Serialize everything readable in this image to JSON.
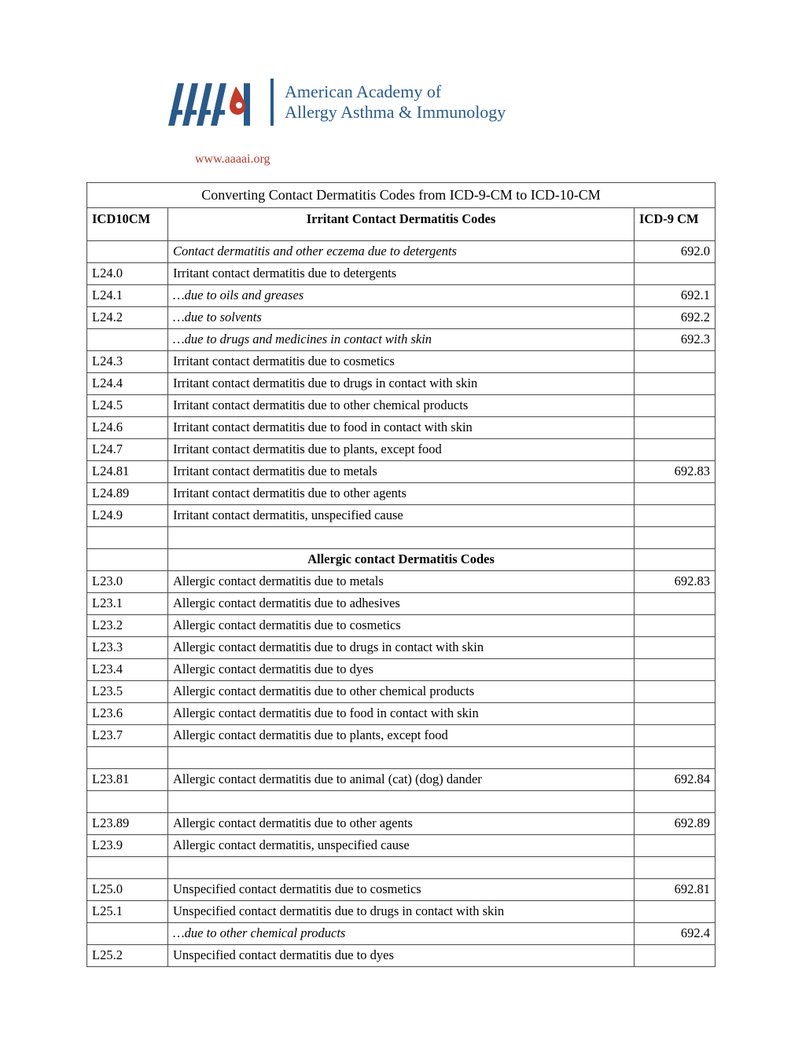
{
  "logo": {
    "line1": "American Academy of",
    "line2": "Allergy Asthma & Immunology",
    "url": "www.aaaai.org",
    "brand_color": "#2a5a8a",
    "accent_color": "#b43a2e"
  },
  "table": {
    "title": "Converting Contact Dermatitis Codes from ICD-9-CM to ICD-10-CM",
    "col_icd10": "ICD10CM",
    "col_desc_1": "Irritant Contact Dermatitis Codes",
    "col_icd9": "ICD-9 CM",
    "section2": "Allergic contact Dermatitis Codes",
    "rows": [
      {
        "icd10": "",
        "desc": "Contact dermatitis and other eczema due to detergents",
        "italic": true,
        "icd9": "692.0"
      },
      {
        "icd10": "L24.0",
        "desc": "Irritant contact dermatitis due to detergents",
        "icd9": ""
      },
      {
        "icd10": "L24.1",
        "desc": "…due to oils and greases",
        "italic": true,
        "icd9": "692.1"
      },
      {
        "icd10": "L24.2",
        "desc": "…due to solvents",
        "italic": true,
        "icd9": "692.2"
      },
      {
        "icd10": "",
        "desc": "…due to drugs and medicines in contact with skin",
        "italic": true,
        "icd9": "692.3"
      },
      {
        "icd10": "L24.3",
        "desc": "Irritant contact dermatitis due to cosmetics",
        "icd9": ""
      },
      {
        "icd10": "L24.4",
        "desc": "Irritant contact dermatitis due to drugs in contact with skin",
        "icd9": ""
      },
      {
        "icd10": "L24.5",
        "desc": "Irritant contact dermatitis due to other chemical products",
        "icd9": ""
      },
      {
        "icd10": "L24.6",
        "desc": "Irritant contact dermatitis due to food in contact with skin",
        "icd9": ""
      },
      {
        "icd10": "L24.7",
        "desc": "Irritant contact dermatitis due to plants, except food",
        "icd9": ""
      },
      {
        "icd10": "L24.81",
        "desc": "Irritant contact dermatitis due to metals",
        "icd9": "692.83"
      },
      {
        "icd10": "L24.89",
        "desc": "Irritant contact dermatitis due to other agents",
        "icd9": ""
      },
      {
        "icd10": "L24.9",
        "desc": "Irritant contact dermatitis, unspecified cause",
        "icd9": ""
      }
    ],
    "rows2": [
      {
        "icd10": "L23.0",
        "desc": "Allergic contact dermatitis due to metals",
        "icd9": "692.83"
      },
      {
        "icd10": "L23.1",
        "desc": "Allergic contact dermatitis due to adhesives",
        "icd9": ""
      },
      {
        "icd10": "L23.2",
        "desc": "Allergic contact dermatitis due to cosmetics",
        "icd9": ""
      },
      {
        "icd10": "L23.3",
        "desc": "Allergic contact dermatitis due to drugs in contact with skin",
        "icd9": ""
      },
      {
        "icd10": "L23.4",
        "desc": "Allergic contact dermatitis due to dyes",
        "icd9": ""
      },
      {
        "icd10": "L23.5",
        "desc": "Allergic contact dermatitis due to other chemical products",
        "icd9": ""
      },
      {
        "icd10": "L23.6",
        "desc": "Allergic contact dermatitis due to food in contact with skin",
        "icd9": ""
      },
      {
        "icd10": "L23.7",
        "desc": "Allergic contact dermatitis due to plants, except food",
        "icd9": ""
      },
      {
        "blank": true
      },
      {
        "icd10": "L23.81",
        "desc": "Allergic contact dermatitis due to animal (cat) (dog) dander",
        "icd9": "692.84"
      },
      {
        "blank": true
      },
      {
        "icd10": "L23.89",
        "desc": "Allergic contact dermatitis due to other agents",
        "icd9": "692.89"
      },
      {
        "icd10": "L23.9",
        "desc": "Allergic contact dermatitis, unspecified cause",
        "icd9": ""
      },
      {
        "blank": true
      },
      {
        "icd10": "L25.0",
        "desc": "Unspecified contact dermatitis due to cosmetics",
        "icd9": "692.81"
      },
      {
        "icd10": "L25.1",
        "desc": "Unspecified contact dermatitis due to drugs in contact with skin",
        "icd9": ""
      },
      {
        "icd10": "",
        "desc": "…due to other chemical products",
        "italic": true,
        "icd9": "692.4"
      },
      {
        "icd10": "L25.2",
        "desc": "Unspecified contact dermatitis due to dyes",
        "icd9": ""
      }
    ]
  }
}
